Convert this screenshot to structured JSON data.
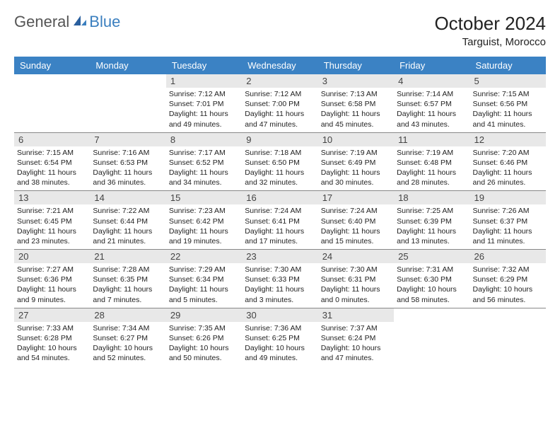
{
  "logo": {
    "part1": "General",
    "part2": "Blue"
  },
  "title": "October 2024",
  "location": "Targuist, Morocco",
  "colors": {
    "header_bg": "#3b82c4",
    "header_fg": "#ffffff",
    "daynum_bg": "#e8e8e8",
    "week_border": "#888888",
    "logo_accent": "#3b7fbf"
  },
  "day_labels": [
    "Sunday",
    "Monday",
    "Tuesday",
    "Wednesday",
    "Thursday",
    "Friday",
    "Saturday"
  ],
  "weeks": [
    [
      null,
      null,
      {
        "n": "1",
        "sr": "Sunrise: 7:12 AM",
        "ss": "Sunset: 7:01 PM",
        "dl": "Daylight: 11 hours and 49 minutes."
      },
      {
        "n": "2",
        "sr": "Sunrise: 7:12 AM",
        "ss": "Sunset: 7:00 PM",
        "dl": "Daylight: 11 hours and 47 minutes."
      },
      {
        "n": "3",
        "sr": "Sunrise: 7:13 AM",
        "ss": "Sunset: 6:58 PM",
        "dl": "Daylight: 11 hours and 45 minutes."
      },
      {
        "n": "4",
        "sr": "Sunrise: 7:14 AM",
        "ss": "Sunset: 6:57 PM",
        "dl": "Daylight: 11 hours and 43 minutes."
      },
      {
        "n": "5",
        "sr": "Sunrise: 7:15 AM",
        "ss": "Sunset: 6:56 PM",
        "dl": "Daylight: 11 hours and 41 minutes."
      }
    ],
    [
      {
        "n": "6",
        "sr": "Sunrise: 7:15 AM",
        "ss": "Sunset: 6:54 PM",
        "dl": "Daylight: 11 hours and 38 minutes."
      },
      {
        "n": "7",
        "sr": "Sunrise: 7:16 AM",
        "ss": "Sunset: 6:53 PM",
        "dl": "Daylight: 11 hours and 36 minutes."
      },
      {
        "n": "8",
        "sr": "Sunrise: 7:17 AM",
        "ss": "Sunset: 6:52 PM",
        "dl": "Daylight: 11 hours and 34 minutes."
      },
      {
        "n": "9",
        "sr": "Sunrise: 7:18 AM",
        "ss": "Sunset: 6:50 PM",
        "dl": "Daylight: 11 hours and 32 minutes."
      },
      {
        "n": "10",
        "sr": "Sunrise: 7:19 AM",
        "ss": "Sunset: 6:49 PM",
        "dl": "Daylight: 11 hours and 30 minutes."
      },
      {
        "n": "11",
        "sr": "Sunrise: 7:19 AM",
        "ss": "Sunset: 6:48 PM",
        "dl": "Daylight: 11 hours and 28 minutes."
      },
      {
        "n": "12",
        "sr": "Sunrise: 7:20 AM",
        "ss": "Sunset: 6:46 PM",
        "dl": "Daylight: 11 hours and 26 minutes."
      }
    ],
    [
      {
        "n": "13",
        "sr": "Sunrise: 7:21 AM",
        "ss": "Sunset: 6:45 PM",
        "dl": "Daylight: 11 hours and 23 minutes."
      },
      {
        "n": "14",
        "sr": "Sunrise: 7:22 AM",
        "ss": "Sunset: 6:44 PM",
        "dl": "Daylight: 11 hours and 21 minutes."
      },
      {
        "n": "15",
        "sr": "Sunrise: 7:23 AM",
        "ss": "Sunset: 6:42 PM",
        "dl": "Daylight: 11 hours and 19 minutes."
      },
      {
        "n": "16",
        "sr": "Sunrise: 7:24 AM",
        "ss": "Sunset: 6:41 PM",
        "dl": "Daylight: 11 hours and 17 minutes."
      },
      {
        "n": "17",
        "sr": "Sunrise: 7:24 AM",
        "ss": "Sunset: 6:40 PM",
        "dl": "Daylight: 11 hours and 15 minutes."
      },
      {
        "n": "18",
        "sr": "Sunrise: 7:25 AM",
        "ss": "Sunset: 6:39 PM",
        "dl": "Daylight: 11 hours and 13 minutes."
      },
      {
        "n": "19",
        "sr": "Sunrise: 7:26 AM",
        "ss": "Sunset: 6:37 PM",
        "dl": "Daylight: 11 hours and 11 minutes."
      }
    ],
    [
      {
        "n": "20",
        "sr": "Sunrise: 7:27 AM",
        "ss": "Sunset: 6:36 PM",
        "dl": "Daylight: 11 hours and 9 minutes."
      },
      {
        "n": "21",
        "sr": "Sunrise: 7:28 AM",
        "ss": "Sunset: 6:35 PM",
        "dl": "Daylight: 11 hours and 7 minutes."
      },
      {
        "n": "22",
        "sr": "Sunrise: 7:29 AM",
        "ss": "Sunset: 6:34 PM",
        "dl": "Daylight: 11 hours and 5 minutes."
      },
      {
        "n": "23",
        "sr": "Sunrise: 7:30 AM",
        "ss": "Sunset: 6:33 PM",
        "dl": "Daylight: 11 hours and 3 minutes."
      },
      {
        "n": "24",
        "sr": "Sunrise: 7:30 AM",
        "ss": "Sunset: 6:31 PM",
        "dl": "Daylight: 11 hours and 0 minutes."
      },
      {
        "n": "25",
        "sr": "Sunrise: 7:31 AM",
        "ss": "Sunset: 6:30 PM",
        "dl": "Daylight: 10 hours and 58 minutes."
      },
      {
        "n": "26",
        "sr": "Sunrise: 7:32 AM",
        "ss": "Sunset: 6:29 PM",
        "dl": "Daylight: 10 hours and 56 minutes."
      }
    ],
    [
      {
        "n": "27",
        "sr": "Sunrise: 7:33 AM",
        "ss": "Sunset: 6:28 PM",
        "dl": "Daylight: 10 hours and 54 minutes."
      },
      {
        "n": "28",
        "sr": "Sunrise: 7:34 AM",
        "ss": "Sunset: 6:27 PM",
        "dl": "Daylight: 10 hours and 52 minutes."
      },
      {
        "n": "29",
        "sr": "Sunrise: 7:35 AM",
        "ss": "Sunset: 6:26 PM",
        "dl": "Daylight: 10 hours and 50 minutes."
      },
      {
        "n": "30",
        "sr": "Sunrise: 7:36 AM",
        "ss": "Sunset: 6:25 PM",
        "dl": "Daylight: 10 hours and 49 minutes."
      },
      {
        "n": "31",
        "sr": "Sunrise: 7:37 AM",
        "ss": "Sunset: 6:24 PM",
        "dl": "Daylight: 10 hours and 47 minutes."
      },
      null,
      null
    ]
  ]
}
